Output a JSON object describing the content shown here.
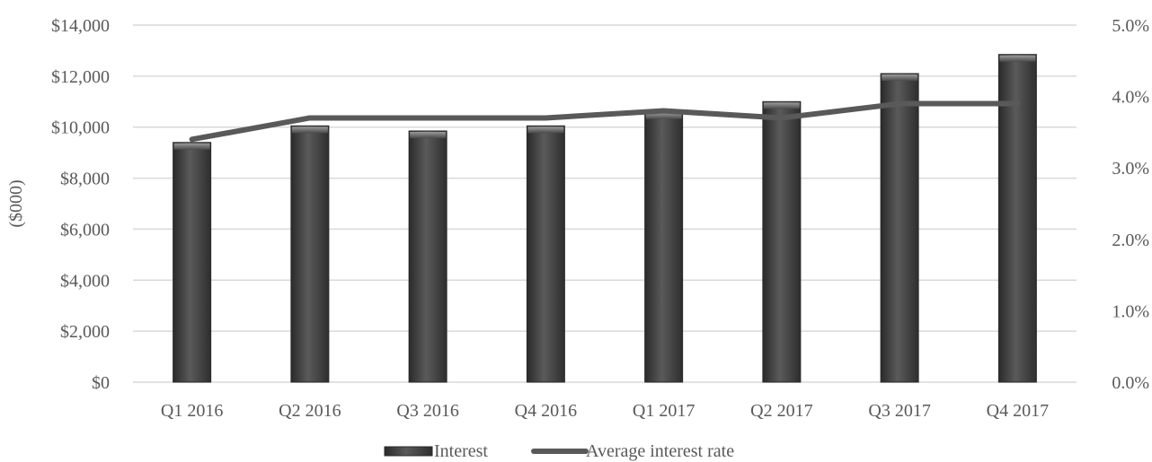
{
  "chart_data": {
    "type": "bar",
    "title": "",
    "categories": [
      "Q1 2016",
      "Q2 2016",
      "Q3 2016",
      "Q4 2016",
      "Q1 2017",
      "Q2 2017",
      "Q3 2017",
      "Q4 2017"
    ],
    "series": [
      {
        "name": "Interest",
        "type": "bar",
        "axis": "left",
        "values": [
          9400,
          10050,
          9850,
          10050,
          10600,
          11000,
          12100,
          12850
        ]
      },
      {
        "name": "Average interest rate",
        "type": "line",
        "axis": "right",
        "values": [
          3.4,
          3.7,
          3.7,
          3.7,
          3.8,
          3.7,
          3.9,
          3.9
        ]
      }
    ],
    "ylabel": "($000)",
    "ylim": [
      0,
      14000
    ],
    "yticks": [
      {
        "value": 0,
        "label": "$0"
      },
      {
        "value": 2000,
        "label": "$2,000"
      },
      {
        "value": 4000,
        "label": "$4,000"
      },
      {
        "value": 6000,
        "label": "$6,000"
      },
      {
        "value": 8000,
        "label": "$8,000"
      },
      {
        "value": 10000,
        "label": "$10,000"
      },
      {
        "value": 12000,
        "label": "$12,000"
      },
      {
        "value": 14000,
        "label": "$14,000"
      }
    ],
    "y2lim": [
      0,
      5
    ],
    "y2ticks": [
      {
        "value": 0,
        "label": "0.0%"
      },
      {
        "value": 1,
        "label": "1.0%"
      },
      {
        "value": 2,
        "label": "2.0%"
      },
      {
        "value": 3,
        "label": "3.0%"
      },
      {
        "value": 4,
        "label": "4.0%"
      },
      {
        "value": 5,
        "label": "5.0%"
      }
    ],
    "grid": true,
    "legend": "bottom-center",
    "colors": {
      "bar": "#404040",
      "line": "#595959",
      "grid": "#d9d9d9",
      "text": "#595959"
    }
  }
}
